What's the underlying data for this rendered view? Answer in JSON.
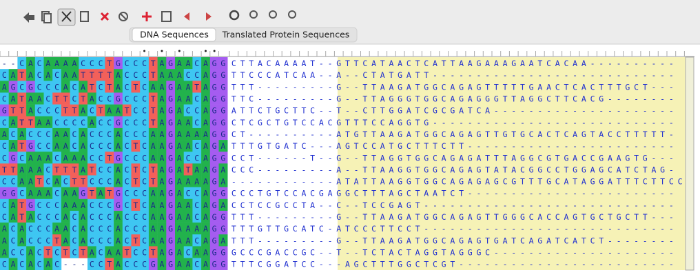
{
  "tabs": [
    {
      "label": "DNA Sequences",
      "selected": true
    },
    {
      "label": "Translated Protein Sequences",
      "selected": false
    }
  ],
  "alignment": {
    "base_colors": {
      "A": "#22b24c",
      "C": "#3ec6f2",
      "G": "#a55cf0",
      "T": "#f2605a"
    },
    "rows": [
      {
        "bases": "--CACAAAACCCTGCCCTAGAACAGG",
        "extension": "CTTACAAAAT--GTTCATAACTCATTAAGAAAGAATCACAA----------"
      },
      {
        "bases": "CATACACAATTTTACCCTAAACCAGG",
        "extension": "TTCCCATCAA--A--CTATGATT----------------------------"
      },
      {
        "bases": "AGCGCCCACATCTACTCAAGAATAGG",
        "extension": "TTT---------G--TTAAGATGGCAGAGTTTTTGAACTCACTTTGCT---"
      },
      {
        "bases": "CATAACTTCTACCGCCCTAGAACAGG",
        "extension": "TTC---------G--TTAGGGTGGCAGAGGGTTAGGCTTCACG--------"
      },
      {
        "bases": "GTTACCCTTACTAATCCTAGACCAGG",
        "extension": "ATTCTGCTTC--T--CTTGGATCGCGATCA---------------------"
      },
      {
        "bases": "CATTAACCCCACCGCCCTAGAACAGG",
        "extension": "CTCGCTGTCCACGTTTCCAGGTG----------------------------"
      },
      {
        "bases": "ACACCCAACACCCACCCAAGAAAAGG",
        "extension": "CT----------ATGTTAAGATGGCAGAGTTGTGCACTCAGTACCTTTTT-"
      },
      {
        "bases": "CATGCCAACACCCACTCAAGAACAGA",
        "extension": "TTTGTGATC---AGTCCATGCTTTCTT------------------------"
      },
      {
        "bases": "CGCAAACAAACCTGCCCAAGACCAGG",
        "extension": "CCT------T--G--TTAGGTGGCAGAGATTTAGGCGTGACCGAAGTG---"
      },
      {
        "bases": "TTAAACTTTATCCACTCTAGATAAGA",
        "extension": "CCC---------A--TTAAGGTGGCAGAGTATACGGCCTGGAGCATCTAG-"
      },
      {
        "bases": "CCAATCACTTCCCACTCTAGAAAAGA",
        "extension": "------------ATATTAAGGTGGCAGAGAGCGTTTGCATAGGATTTCTTCC"
      },
      {
        "bases": "GGCAAACAAGTATGCCCAAGACCAGG",
        "extension": "CCCTGTCCACGAGGCTTTAGCTAATCT------------------------"
      },
      {
        "bases": "CATGCCCAAACCCGCTCAAGAACAGA",
        "extension": "CCTCCGCCTA--C--TCCGAGT-----------------------------"
      },
      {
        "bases": "CATACCCACACCCACCCAAGAACAGG",
        "extension": "TTT---------G--TTAAGATGGCAGAGTTGGGCACCAGTGCTGCTT---"
      },
      {
        "bases": "ACACCCAACACCCACCCAAGAAAAGG",
        "extension": "TTTGTTGCATC-ATCCCTTCCT-----------------------------"
      },
      {
        "bases": "ACACCCTACACCCACTCAAGAACAGA",
        "extension": "TTT---------G--TTAAGATGGCAGAGTGATCAGATCATCT--------"
      },
      {
        "bases": "ACCACTCTCTACAATCCTAGACAAGG",
        "extension": "GCCCGACCGC--T--TCTACTAGGTAGGGC---------------------"
      },
      {
        "bases": "CACACAC---CCTACCCGAGAACAGG",
        "extension": "TTTCGGATCC---AGCTTTGGCTCGT-------------------------"
      }
    ]
  }
}
